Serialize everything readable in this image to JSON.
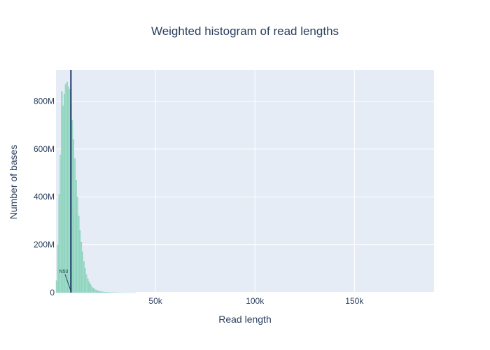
{
  "chart_data": {
    "type": "bar",
    "title": "Weighted histogram of read lengths",
    "xlabel": "Read length",
    "ylabel": "Number of bases",
    "xlim": [
      0,
      190000
    ],
    "ylim": [
      0,
      930000000
    ],
    "x_ticks": [
      {
        "value": 50000,
        "label": "50k"
      },
      {
        "value": 100000,
        "label": "100k"
      },
      {
        "value": 150000,
        "label": "150k"
      }
    ],
    "y_ticks": [
      {
        "value": 0,
        "label": "0"
      },
      {
        "value": 200000000,
        "label": "200M"
      },
      {
        "value": 400000000,
        "label": "400M"
      },
      {
        "value": 600000000,
        "label": "600M"
      },
      {
        "value": 800000000,
        "label": "800M"
      }
    ],
    "grid": true,
    "bin_width": 650,
    "bins_x": [
      325,
      975,
      1625,
      2275,
      2925,
      3575,
      4225,
      4875,
      5525,
      6175,
      6825,
      7475,
      8125,
      8775,
      9425,
      10075,
      10725,
      11375,
      12025,
      12675,
      13325,
      13975,
      14625,
      15275,
      15925,
      16575,
      17225,
      17875,
      18525,
      19175,
      19825,
      20475,
      21125,
      21775,
      22425,
      23075,
      23725,
      24375,
      25025,
      25675,
      26325,
      26975,
      27625,
      28275,
      28925,
      29575,
      30225,
      30875,
      31525,
      32175,
      32825,
      33475,
      34125,
      34775,
      35425,
      36075,
      36725,
      37375,
      38025,
      38675,
      39325,
      39975
    ],
    "values": [
      50000000,
      200000000,
      410000000,
      575000000,
      840000000,
      780000000,
      830000000,
      870000000,
      880000000,
      860000000,
      850000000,
      790000000,
      720000000,
      640000000,
      560000000,
      470000000,
      400000000,
      320000000,
      260000000,
      210000000,
      170000000,
      130000000,
      100000000,
      75000000,
      58000000,
      45000000,
      35000000,
      27000000,
      20000000,
      15000000,
      12000000,
      9000000,
      7000000,
      5500000,
      4500000,
      3500000,
      3000000,
      2500000,
      2000000,
      1700000,
      1400000,
      1200000,
      1000000,
      850000,
      700000,
      600000,
      500000,
      420000,
      350000,
      300000,
      250000,
      200000,
      170000,
      150000,
      120000,
      100000,
      80000,
      60000,
      50000,
      40000,
      30000,
      20000
    ],
    "bar_color": "#a2dccb",
    "bar_edge_color": "#6cc3a9",
    "n50": {
      "value": 7500,
      "label": "N50",
      "line_color": "#1f3769"
    }
  }
}
